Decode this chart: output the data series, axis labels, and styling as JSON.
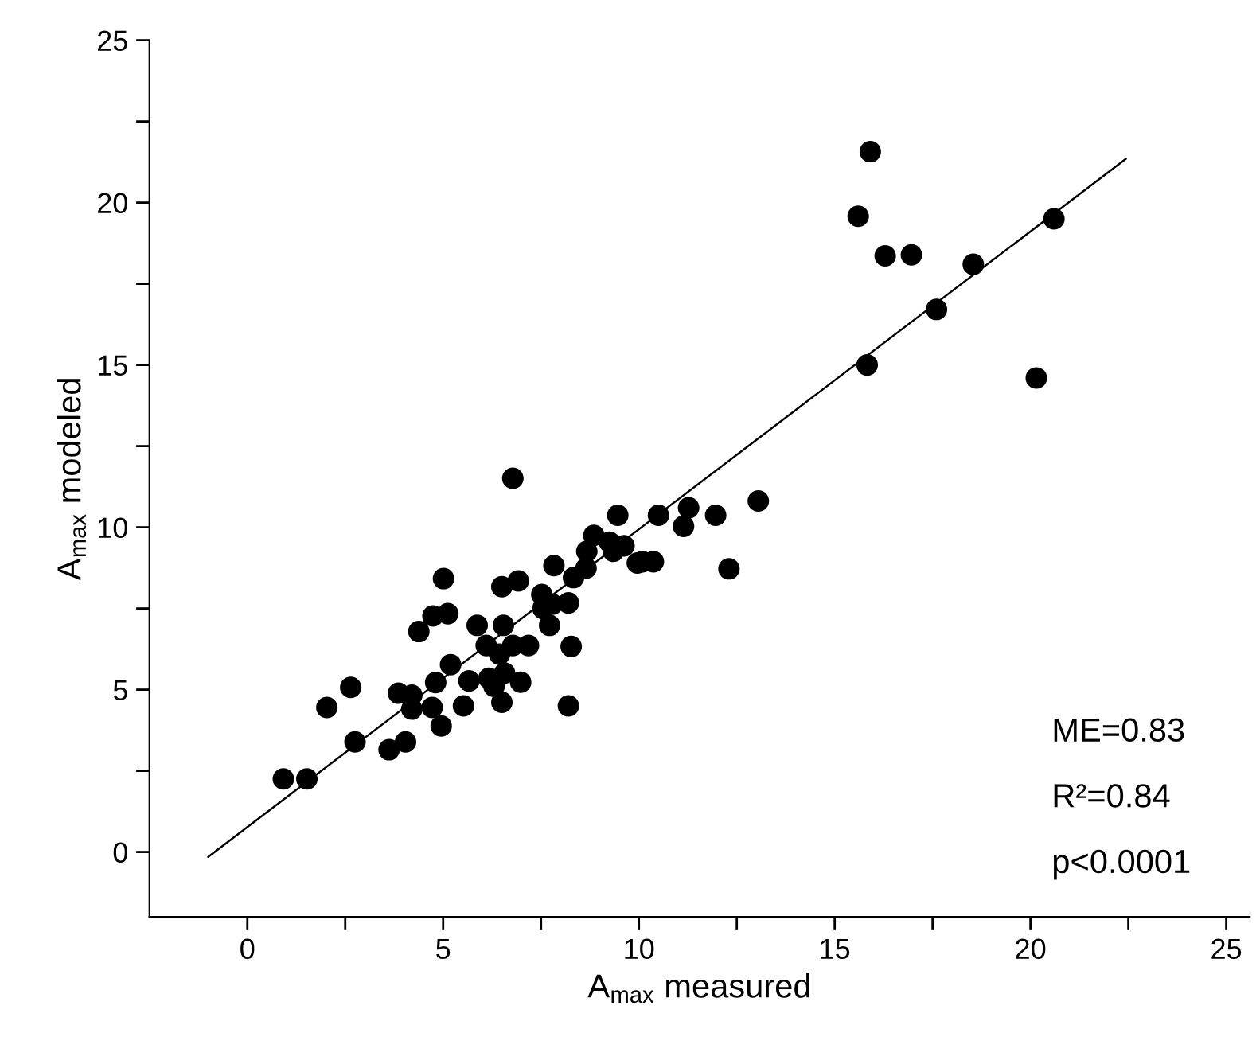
{
  "chart_data": {
    "type": "scatter",
    "xlabel": "A$_{max}$ measured",
    "ylabel": "A$_{max}$ modeled",
    "series": [
      {
        "color": "#000000",
        "marker": "circle",
        "x": [
          6.78,
          9.46,
          8.85,
          9.25,
          9.62,
          9.35,
          8.67,
          9.96,
          7.83,
          8.65,
          8.33,
          5.01,
          6.92,
          6.5,
          7.52,
          7.79,
          8.2,
          7.55,
          4.74,
          5.12,
          7.72,
          5.87,
          6.54,
          4.38,
          6.1,
          6.78,
          7.18,
          8.27,
          6.44,
          5.19,
          6.57,
          6.17,
          5.66,
          4.81,
          6.98,
          6.3,
          2.64,
          3.86,
          4.2,
          2.03,
          4.2,
          4.72,
          5.52,
          6.5,
          8.2,
          4.95,
          2.75,
          4.04,
          3.62,
          0.92,
          1.52,
          15.91,
          15.6,
          16.29,
          16.96,
          18.54,
          20.6,
          17.6,
          15.83,
          20.15,
          13.05,
          11.96,
          11.27,
          11.14,
          10.5,
          12.3,
          10.09,
          10.37
        ],
        "values": [
          11.51,
          10.37,
          9.75,
          9.54,
          9.43,
          9.26,
          9.26,
          8.9,
          8.82,
          8.74,
          8.45,
          8.42,
          8.35,
          8.17,
          7.93,
          7.63,
          7.67,
          7.5,
          7.27,
          7.34,
          6.98,
          6.98,
          6.98,
          6.79,
          6.36,
          6.36,
          6.36,
          6.33,
          6.09,
          5.77,
          5.51,
          5.35,
          5.27,
          5.22,
          5.23,
          5.1,
          5.07,
          4.89,
          4.83,
          4.45,
          4.4,
          4.45,
          4.5,
          4.61,
          4.5,
          3.88,
          3.39,
          3.39,
          3.15,
          2.25,
          2.25,
          21.57,
          19.58,
          18.36,
          18.39,
          18.1,
          19.5,
          16.71,
          15.0,
          14.6,
          10.81,
          10.37,
          10.6,
          10.03,
          10.37,
          8.72,
          8.94,
          8.94
        ]
      },
      {
        "type": "line",
        "color": "#000000",
        "line_style": "solid",
        "x": [
          -1.0,
          22.44
        ],
        "values": [
          -0.15,
          21.35
        ]
      }
    ],
    "xlim": [
      -2.5,
      25.6
    ],
    "ylim": [
      -2,
      25
    ],
    "xticks": [
      0,
      {
        "value": 2.5,
        "label": null
      },
      5,
      {
        "value": 7.5,
        "label": null
      },
      10,
      {
        "value": 12.5,
        "label": null
      },
      15,
      {
        "value": 17.5,
        "label": null
      },
      20,
      {
        "value": 22.5,
        "label": null
      },
      25
    ],
    "yticks": [
      0,
      {
        "value": 2.5,
        "label": null
      },
      5,
      {
        "value": 7.5,
        "label": null
      },
      10,
      {
        "value": 12.5,
        "label": null
      },
      15,
      {
        "value": 17.5,
        "label": null
      },
      20,
      {
        "value": 22.5,
        "label": null
      },
      25
    ],
    "annotations": [
      "ME=0.83",
      "R²=0.84",
      "p<0.0001"
    ],
    "grid": false,
    "legend": false
  }
}
